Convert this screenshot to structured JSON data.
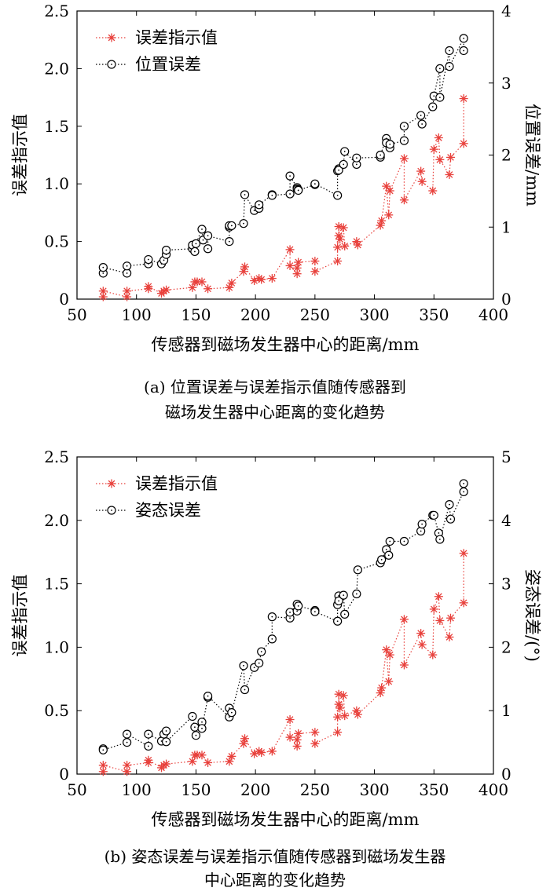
{
  "chart_data": [
    {
      "type": "line",
      "caption_line1": "(a) 位置误差与误差指示值随传感器到",
      "caption_line2": "磁场发生器中心距离的变化趋势",
      "xlabel": "传感器到磁场发生器中心的距离/mm",
      "ylabel_left": "误差指示值",
      "ylabel_right": "位置误差/mm",
      "xlim": [
        50,
        400
      ],
      "ylim_left": [
        0,
        2.5
      ],
      "ylim_right": [
        0,
        4
      ],
      "xticks": [
        "50",
        "100",
        "150",
        "200",
        "250",
        "300",
        "350",
        "400"
      ],
      "yticks_left": [
        "0",
        "0.5",
        "1.0",
        "1.5",
        "2.0",
        "2.5"
      ],
      "yticks_right": [
        "0",
        "1",
        "2",
        "3",
        "4"
      ],
      "legend": "top-left",
      "series": [
        {
          "name": "误差指示值",
          "axis": "left",
          "marker": "asterisk",
          "color": "#e8413c",
          "x": [
            72,
            72,
            92,
            92,
            110,
            110,
            121,
            123,
            125,
            147,
            149,
            151,
            155,
            160,
            178,
            180,
            190,
            191,
            199,
            203,
            205,
            214,
            229,
            229,
            235,
            235,
            236,
            250,
            250,
            269,
            269,
            270,
            270,
            271,
            274,
            275,
            285,
            286,
            305,
            306,
            310,
            312,
            313,
            325,
            325,
            339,
            340,
            349,
            350,
            354,
            355,
            363,
            364,
            375,
            375
          ],
          "y": [
            0.02,
            0.07,
            0.02,
            0.07,
            0.09,
            0.11,
            0.05,
            0.07,
            0.08,
            0.1,
            0.15,
            0.15,
            0.15,
            0.09,
            0.1,
            0.14,
            0.24,
            0.28,
            0.16,
            0.18,
            0.17,
            0.18,
            0.43,
            0.29,
            0.22,
            0.27,
            0.32,
            0.33,
            0.24,
            0.33,
            0.45,
            0.55,
            0.63,
            0.52,
            0.62,
            0.46,
            0.5,
            0.47,
            0.64,
            0.68,
            0.98,
            0.73,
            0.94,
            1.22,
            0.86,
            1.11,
            1.02,
            0.94,
            1.3,
            1.4,
            1.21,
            1.08,
            1.23,
            1.35,
            1.74
          ]
        },
        {
          "name": "位置误差",
          "axis": "right",
          "marker": "circle",
          "color": "#000000",
          "x": [
            72,
            72,
            92,
            92,
            110,
            110,
            121,
            123,
            125,
            125,
            147,
            147,
            149,
            150,
            155,
            156,
            160,
            160,
            178,
            178,
            178,
            180,
            190,
            191,
            199,
            203,
            203,
            214,
            214,
            229,
            229,
            235,
            235,
            236,
            236,
            250,
            250,
            269,
            269,
            270,
            270,
            274,
            275,
            285,
            285,
            305,
            305,
            310,
            310,
            313,
            313,
            325,
            325,
            339,
            340,
            349,
            350,
            355,
            355,
            363,
            363,
            375,
            375
          ],
          "y": [
            0.36,
            0.44,
            0.36,
            0.46,
            0.49,
            0.55,
            0.49,
            0.54,
            0.62,
            0.68,
            0.7,
            0.75,
            0.66,
            0.77,
            0.97,
            0.82,
            0.7,
            0.88,
            0.8,
            1.0,
            1.02,
            1.02,
            1.05,
            1.45,
            1.23,
            1.26,
            1.31,
            1.45,
            1.44,
            1.46,
            1.71,
            1.55,
            1.53,
            1.52,
            1.51,
            1.59,
            1.6,
            1.44,
            1.78,
            1.81,
            1.79,
            1.87,
            2.05,
            1.87,
            1.96,
            1.97,
            2.0,
            2.23,
            2.17,
            2.1,
            2.15,
            2.2,
            2.4,
            2.55,
            2.43,
            2.67,
            2.82,
            3.2,
            2.8,
            3.45,
            3.23,
            3.62,
            3.45
          ]
        }
      ]
    },
    {
      "type": "line",
      "caption_line1": "(b) 姿态误差与误差指示值随传感器到磁场发生器",
      "caption_line2": "中心距离的变化趋势",
      "xlabel": "传感器到磁场发生器中心的距离/mm",
      "ylabel_left": "误差指示值",
      "ylabel_right": "姿态误差/(°)",
      "xlim": [
        50,
        400
      ],
      "ylim_left": [
        0,
        2.5
      ],
      "ylim_right": [
        0,
        5
      ],
      "xticks": [
        "50",
        "100",
        "150",
        "200",
        "250",
        "300",
        "350",
        "400"
      ],
      "yticks_left": [
        "0",
        "0.5",
        "1.0",
        "1.5",
        "2.0",
        "2.5"
      ],
      "yticks_right": [
        "0",
        "1",
        "2",
        "3",
        "4",
        "5"
      ],
      "legend": "top-left",
      "series": [
        {
          "name": "误差指示值",
          "axis": "left",
          "marker": "asterisk",
          "color": "#e8413c",
          "x": [
            72,
            72,
            92,
            92,
            110,
            110,
            121,
            123,
            125,
            147,
            149,
            151,
            155,
            160,
            178,
            180,
            190,
            191,
            199,
            203,
            205,
            214,
            229,
            229,
            235,
            235,
            236,
            250,
            250,
            269,
            269,
            270,
            270,
            271,
            274,
            275,
            285,
            286,
            305,
            306,
            310,
            312,
            313,
            325,
            325,
            339,
            340,
            349,
            350,
            354,
            355,
            363,
            364,
            375,
            375
          ],
          "y": [
            0.02,
            0.07,
            0.02,
            0.07,
            0.09,
            0.11,
            0.05,
            0.07,
            0.08,
            0.1,
            0.15,
            0.15,
            0.15,
            0.09,
            0.1,
            0.14,
            0.24,
            0.28,
            0.16,
            0.18,
            0.17,
            0.18,
            0.43,
            0.29,
            0.22,
            0.27,
            0.32,
            0.33,
            0.24,
            0.33,
            0.45,
            0.55,
            0.63,
            0.52,
            0.62,
            0.46,
            0.5,
            0.47,
            0.64,
            0.68,
            0.98,
            0.73,
            0.94,
            1.22,
            0.86,
            1.11,
            1.02,
            0.94,
            1.3,
            1.4,
            1.21,
            1.08,
            1.23,
            1.35,
            1.74
          ]
        },
        {
          "name": "姿态误差",
          "axis": "right",
          "marker": "circle",
          "color": "#000000",
          "x": [
            72,
            72,
            92,
            92,
            110,
            110,
            121,
            123,
            125,
            125,
            147,
            149,
            150,
            155,
            155,
            160,
            160,
            178,
            178,
            180,
            190,
            191,
            199,
            203,
            205,
            214,
            214,
            229,
            229,
            235,
            235,
            236,
            250,
            250,
            269,
            269,
            270,
            270,
            274,
            275,
            285,
            286,
            305,
            306,
            310,
            312,
            313,
            325,
            339,
            340,
            349,
            350,
            354,
            355,
            363,
            364,
            375,
            375
          ],
          "y": [
            0.4,
            0.38,
            0.5,
            0.63,
            0.44,
            0.63,
            0.52,
            0.63,
            0.68,
            0.51,
            0.91,
            0.74,
            0.61,
            0.82,
            0.72,
            1.21,
            1.23,
            0.9,
            1.04,
            0.97,
            1.71,
            1.33,
            1.68,
            1.75,
            1.93,
            2.13,
            2.48,
            2.46,
            2.55,
            2.68,
            2.57,
            2.65,
            2.58,
            2.56,
            2.41,
            2.67,
            2.81,
            2.73,
            2.82,
            2.52,
            2.84,
            3.22,
            3.33,
            3.38,
            3.54,
            3.45,
            3.67,
            3.67,
            3.83,
            3.94,
            4.08,
            4.08,
            3.8,
            3.7,
            4.25,
            4.02,
            4.45,
            4.58
          ]
        }
      ]
    }
  ]
}
